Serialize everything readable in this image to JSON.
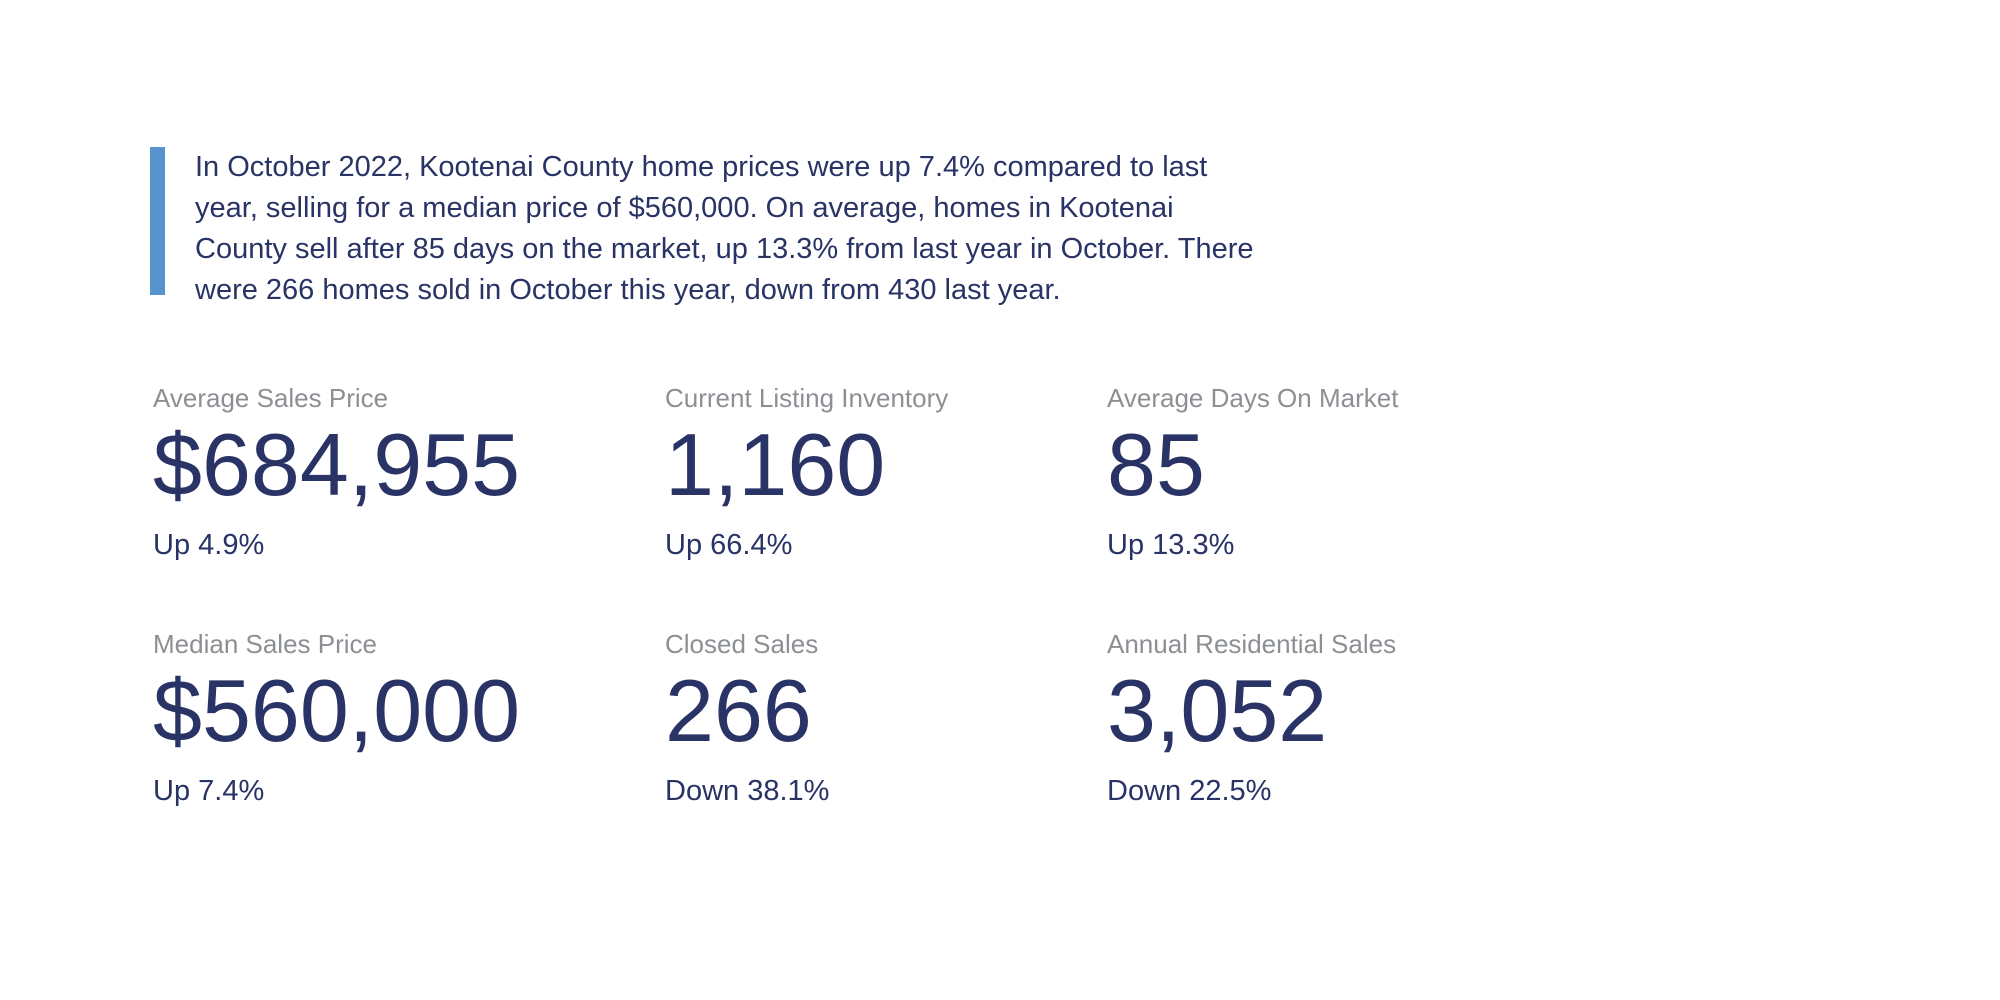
{
  "colors": {
    "accent": "#5794ce",
    "navy": "#293365",
    "gray": "#8c8f93",
    "bg": "#ffffff"
  },
  "quote": {
    "lines": [
      "In October 2022, Kootenai County home prices were up 7.4% compared to last",
      "year, selling for a median price of $560,000. On average, homes in Kootenai",
      "County sell after 85 days on the market, up 13.3% from last year in October. There",
      "were 266 homes sold in October this year, down from 430 last year."
    ]
  },
  "stats": {
    "cards": [
      {
        "label": "Average Sales Price",
        "value": "$684,955",
        "change": "Up 4.9%"
      },
      {
        "label": "Current Listing Inventory",
        "value": "1,160",
        "change": "Up 66.4%"
      },
      {
        "label": "Average Days On Market",
        "value": "85",
        "change": "Up 13.3%"
      },
      {
        "label": "Median Sales Price",
        "value": "$560,000",
        "change": "Up 7.4%"
      },
      {
        "label": "Closed Sales",
        "value": "266",
        "change": "Down 38.1%"
      },
      {
        "label": "Annual Residential Sales",
        "value": "3,052",
        "change": "Down 22.5%"
      }
    ]
  }
}
